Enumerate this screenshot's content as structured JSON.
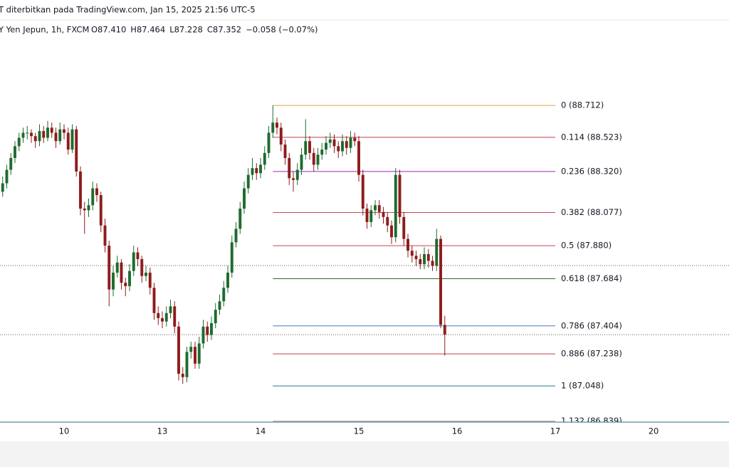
{
  "chart_data": {
    "type": "candlestick",
    "header": "T diterbitkan pada TradingView.com, Jan 15, 2025 21:56 UTC-5",
    "symbol": "Y Yen Jepun, 1h, FXCM",
    "ohlc_legend": [
      "O87.410",
      "H87.464",
      "L87.228",
      "C87.352",
      "−0.058 (−0.07%)"
    ],
    "up_color": "#1e6b2e",
    "down_color": "#8e1c1c",
    "xlim": [
      -15.65,
      162.43
    ],
    "xticks": [
      {
        "value": 0,
        "label": "10"
      },
      {
        "value": 24,
        "label": "13"
      },
      {
        "value": 48,
        "label": "14"
      },
      {
        "value": 72,
        "label": "15"
      },
      {
        "value": 96,
        "label": "16"
      },
      {
        "value": 120,
        "label": "17"
      },
      {
        "value": 144,
        "label": "20"
      }
    ],
    "ylim": [
      86.833,
      89.084
    ],
    "x": [
      -15,
      -14,
      -13,
      -12,
      -11,
      -10,
      -9,
      -8,
      -7,
      -6,
      -5,
      -4,
      -3,
      -2,
      -1,
      0,
      1,
      2,
      3,
      4,
      5,
      6,
      7,
      8,
      9,
      10,
      11,
      12,
      13,
      14,
      15,
      16,
      17,
      18,
      19,
      20,
      21,
      22,
      23,
      24,
      25,
      26,
      27,
      28,
      29,
      30,
      31,
      32,
      33,
      34,
      35,
      36,
      37,
      38,
      39,
      40,
      41,
      42,
      43,
      44,
      45,
      46,
      47,
      48,
      49,
      50,
      51,
      52,
      53,
      54,
      55,
      56,
      57,
      58,
      59,
      60,
      61,
      62,
      63,
      64,
      65,
      66,
      67,
      68,
      69,
      70,
      71,
      72,
      73,
      74,
      75,
      76,
      77,
      78,
      79,
      80,
      81,
      82,
      83,
      84,
      85,
      86,
      87,
      88,
      89,
      90,
      91,
      92,
      93
    ],
    "candles": [
      [
        88.2,
        88.29,
        88.17,
        88.25
      ],
      [
        88.25,
        88.36,
        88.22,
        88.33
      ],
      [
        88.33,
        88.43,
        88.3,
        88.4
      ],
      [
        88.4,
        88.5,
        88.37,
        88.47
      ],
      [
        88.47,
        88.55,
        88.44,
        88.52
      ],
      [
        88.52,
        88.58,
        88.49,
        88.55
      ],
      [
        88.55,
        88.59,
        88.51,
        88.55
      ],
      [
        88.55,
        88.57,
        88.49,
        88.53
      ],
      [
        88.53,
        88.55,
        88.46,
        88.5
      ],
      [
        88.5,
        88.6,
        88.47,
        88.56
      ],
      [
        88.56,
        88.59,
        88.49,
        88.52
      ],
      [
        88.52,
        88.62,
        88.5,
        88.58
      ],
      [
        88.58,
        88.61,
        88.52,
        88.55
      ],
      [
        88.55,
        88.58,
        88.46,
        88.5
      ],
      [
        88.5,
        88.61,
        88.48,
        88.57
      ],
      [
        88.57,
        88.6,
        88.51,
        88.55
      ],
      [
        88.55,
        88.58,
        88.42,
        88.45
      ],
      [
        88.45,
        88.6,
        88.43,
        88.57
      ],
      [
        88.57,
        88.59,
        88.29,
        88.32
      ],
      [
        88.32,
        88.35,
        88.06,
        88.1
      ],
      [
        88.1,
        88.14,
        87.95,
        88.09
      ],
      [
        88.09,
        88.16,
        88.05,
        88.12
      ],
      [
        88.12,
        88.26,
        88.09,
        88.22
      ],
      [
        88.22,
        88.25,
        88.14,
        88.18
      ],
      [
        88.18,
        88.2,
        87.96,
        88.0
      ],
      [
        88.0,
        88.04,
        87.84,
        87.88
      ],
      [
        87.88,
        87.91,
        87.52,
        87.62
      ],
      [
        87.62,
        87.76,
        87.58,
        87.72
      ],
      [
        87.72,
        87.82,
        87.69,
        87.78
      ],
      [
        87.78,
        87.8,
        87.62,
        87.66
      ],
      [
        87.66,
        87.69,
        87.58,
        87.64
      ],
      [
        87.64,
        87.77,
        87.61,
        87.73
      ],
      [
        87.73,
        87.88,
        87.7,
        87.84
      ],
      [
        87.84,
        87.87,
        87.76,
        87.8
      ],
      [
        87.8,
        87.82,
        87.66,
        87.7
      ],
      [
        87.7,
        87.76,
        87.67,
        87.72
      ],
      [
        87.72,
        87.75,
        87.59,
        87.63
      ],
      [
        87.63,
        87.66,
        87.44,
        87.48
      ],
      [
        87.48,
        87.52,
        87.41,
        87.45
      ],
      [
        87.45,
        87.49,
        87.39,
        87.43
      ],
      [
        87.43,
        87.52,
        87.4,
        87.48
      ],
      [
        87.48,
        87.56,
        87.45,
        87.52
      ],
      [
        87.52,
        87.55,
        87.36,
        87.4
      ],
      [
        87.4,
        87.43,
        87.08,
        87.12
      ],
      [
        87.12,
        87.16,
        87.06,
        87.1
      ],
      [
        87.1,
        87.28,
        87.07,
        87.25
      ],
      [
        87.25,
        87.31,
        87.21,
        87.28
      ],
      [
        87.28,
        87.31,
        87.15,
        87.18
      ],
      [
        87.18,
        87.34,
        87.15,
        87.3
      ],
      [
        87.3,
        87.44,
        87.27,
        87.4
      ],
      [
        87.4,
        87.43,
        87.31,
        87.35
      ],
      [
        87.35,
        87.46,
        87.32,
        87.42
      ],
      [
        87.42,
        87.54,
        87.39,
        87.5
      ],
      [
        87.5,
        87.59,
        87.47,
        87.55
      ],
      [
        87.55,
        87.67,
        87.52,
        87.63
      ],
      [
        87.63,
        87.76,
        87.6,
        87.72
      ],
      [
        87.72,
        87.94,
        87.69,
        87.9
      ],
      [
        87.9,
        88.02,
        87.87,
        87.98
      ],
      [
        87.98,
        88.14,
        87.95,
        88.1
      ],
      [
        88.1,
        88.26,
        88.07,
        88.22
      ],
      [
        88.22,
        88.34,
        88.19,
        88.3
      ],
      [
        88.3,
        88.4,
        88.27,
        88.34
      ],
      [
        88.34,
        88.37,
        88.27,
        88.31
      ],
      [
        88.31,
        88.4,
        88.28,
        88.36
      ],
      [
        88.36,
        88.47,
        88.33,
        88.43
      ],
      [
        88.43,
        88.59,
        88.4,
        88.55
      ],
      [
        88.55,
        88.712,
        88.52,
        88.61
      ],
      [
        88.61,
        88.64,
        88.54,
        88.58
      ],
      [
        88.58,
        88.61,
        88.44,
        88.48
      ],
      [
        88.48,
        88.51,
        88.36,
        88.4
      ],
      [
        88.4,
        88.43,
        88.24,
        88.28
      ],
      [
        88.28,
        88.32,
        88.2,
        88.27
      ],
      [
        88.27,
        88.37,
        88.24,
        88.33
      ],
      [
        88.33,
        88.46,
        88.3,
        88.42
      ],
      [
        88.42,
        88.63,
        88.39,
        88.5
      ],
      [
        88.5,
        88.53,
        88.39,
        88.43
      ],
      [
        88.43,
        88.46,
        88.32,
        88.36
      ],
      [
        88.36,
        88.46,
        88.33,
        88.42
      ],
      [
        88.42,
        88.49,
        88.39,
        88.45
      ],
      [
        88.45,
        88.53,
        88.42,
        88.49
      ],
      [
        88.49,
        88.55,
        88.46,
        88.51
      ],
      [
        88.51,
        88.54,
        88.43,
        88.47
      ],
      [
        88.47,
        88.5,
        88.4,
        88.44
      ],
      [
        88.44,
        88.54,
        88.41,
        88.5
      ],
      [
        88.5,
        88.53,
        88.42,
        88.46
      ],
      [
        88.46,
        88.56,
        88.43,
        88.52
      ],
      [
        88.52,
        88.55,
        88.47,
        88.5
      ],
      [
        88.5,
        88.53,
        88.26,
        88.3
      ],
      [
        88.3,
        88.33,
        88.06,
        88.1
      ],
      [
        88.1,
        88.13,
        87.98,
        88.02
      ],
      [
        88.02,
        88.12,
        87.99,
        88.09
      ],
      [
        88.09,
        88.15,
        88.06,
        88.12
      ],
      [
        88.12,
        88.15,
        88.04,
        88.08
      ],
      [
        88.08,
        88.11,
        88.01,
        88.05
      ],
      [
        88.05,
        88.08,
        87.96,
        88.0
      ],
      [
        88.0,
        88.03,
        87.89,
        87.93
      ],
      [
        87.93,
        88.34,
        87.9,
        88.3
      ],
      [
        88.3,
        88.33,
        88.01,
        88.05
      ],
      [
        88.05,
        88.08,
        87.88,
        87.92
      ],
      [
        87.92,
        87.95,
        87.81,
        87.85
      ],
      [
        87.85,
        87.88,
        87.78,
        87.82
      ],
      [
        87.82,
        87.85,
        87.76,
        87.8
      ],
      [
        87.8,
        87.83,
        87.74,
        87.77
      ],
      [
        87.77,
        87.87,
        87.74,
        87.83
      ],
      [
        87.83,
        87.86,
        87.75,
        87.79
      ],
      [
        87.79,
        87.82,
        87.73,
        87.76
      ],
      [
        87.76,
        87.98,
        87.73,
        87.92
      ],
      [
        87.92,
        87.94,
        87.39,
        87.41
      ],
      [
        87.41,
        87.464,
        87.228,
        87.352
      ]
    ],
    "price_lines": [
      87.762,
      87.352
    ],
    "fib_x_range": [
      51,
      120
    ],
    "fib_levels": [
      {
        "label": "0 (88.712)",
        "price": 88.712,
        "color": "#e0a040"
      },
      {
        "label": "0.114 (88.523)",
        "price": 88.523,
        "color": "#c0424e"
      },
      {
        "label": "0.236 (88.320)",
        "price": 88.32,
        "color": "#9c27b0"
      },
      {
        "label": "0.382 (88.077)",
        "price": 88.077,
        "color": "#c94452"
      },
      {
        "label": "0.5 (87.880)",
        "price": 87.88,
        "color": "#c94452"
      },
      {
        "label": "0.618 (87.684)",
        "price": 87.684,
        "color": "#2e6b30"
      },
      {
        "label": "0.786 (87.404)",
        "price": 87.404,
        "color": "#4a7fb5"
      },
      {
        "label": "0.886 (87.238)",
        "price": 87.238,
        "color": "#c0424e"
      },
      {
        "label": "1 (87.048)",
        "price": 87.048,
        "color": "#1f7f8c"
      },
      {
        "label": "1.132 (86.839)",
        "price": 86.839,
        "color": "#9a8f95"
      }
    ]
  }
}
